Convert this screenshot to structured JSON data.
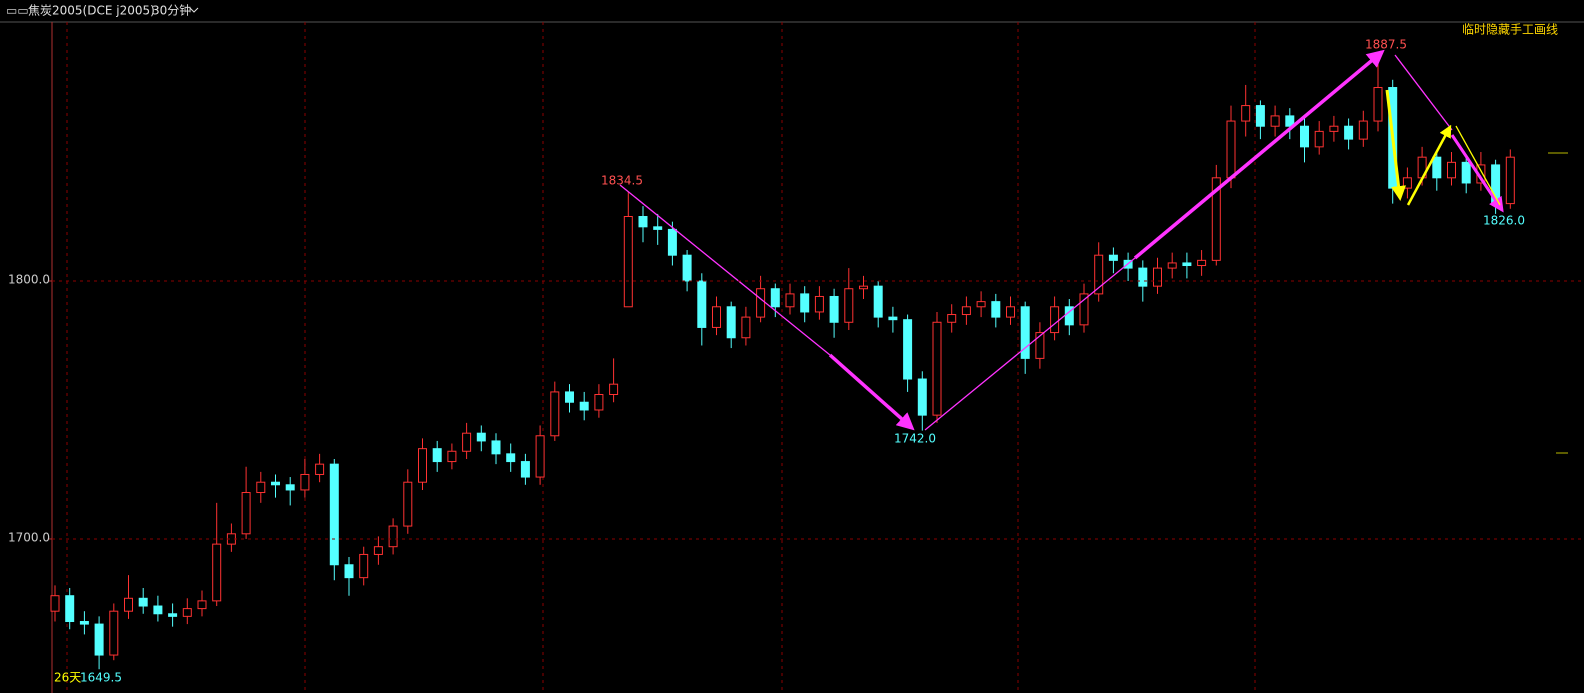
{
  "chart_data": {
    "type": "candlestick",
    "title": "焦炭2005(DCE j2005)",
    "period": "30分钟",
    "toolbar_action": "临时隐藏手工画线",
    "up_color": "#ff3232",
    "down_color": "#54ffff",
    "ylim": [
      1643,
      1900.4
    ],
    "yticks": [
      {
        "value": 1800,
        "label": "1800.0"
      },
      {
        "value": 1700,
        "label": "1700.0"
      }
    ],
    "annotations": [
      "1834.5",
      "1742.0",
      "1887.5",
      "1826.0"
    ],
    "days_label": "26天",
    "low_label": "1649.5",
    "open": [
      1672,
      1678,
      1668,
      1667,
      1655,
      1672,
      1677,
      1674,
      1671,
      1670,
      1673,
      1676,
      1698,
      1702,
      1718,
      1722,
      1721,
      1719,
      1725,
      1729,
      1690,
      1685,
      1694,
      1697,
      1705,
      1722,
      1735,
      1730,
      1734,
      1741,
      1738,
      1733,
      1730,
      1724,
      1740,
      1757,
      1753,
      1750,
      1756,
      1790,
      1825,
      1821,
      1820,
      1810,
      1800,
      1782,
      1790,
      1778,
      1786,
      1797,
      1790,
      1795,
      1788,
      1794,
      1784,
      1797,
      1798,
      1786,
      1785,
      1762,
      1748,
      1784,
      1787,
      1790,
      1792,
      1786,
      1790,
      1770,
      1780,
      1790,
      1783,
      1795,
      1810,
      1808,
      1805,
      1798,
      1805,
      1807,
      1806,
      1808,
      1840,
      1862,
      1868,
      1860,
      1864,
      1860,
      1852,
      1858,
      1860,
      1855,
      1862,
      1875,
      1836,
      1840,
      1848,
      1840,
      1846,
      1838,
      1845,
      1830
    ],
    "high": [
      1682,
      1681,
      1672,
      1670,
      1675,
      1686,
      1681,
      1678,
      1675,
      1677,
      1680,
      1714,
      1706,
      1728,
      1726,
      1725,
      1724,
      1731,
      1733,
      1731,
      1693,
      1697,
      1701,
      1708,
      1727,
      1739,
      1738,
      1737,
      1745,
      1744,
      1741,
      1737,
      1733,
      1744,
      1761,
      1760,
      1757,
      1760,
      1770,
      1834.5,
      1829,
      1826,
      1823,
      1812,
      1803,
      1794,
      1792,
      1790,
      1802,
      1799,
      1799,
      1798,
      1798,
      1797,
      1805,
      1802,
      1800,
      1790,
      1787,
      1765,
      1788,
      1791,
      1794,
      1796,
      1795,
      1794,
      1792,
      1784,
      1794,
      1793,
      1799,
      1815,
      1813,
      1811,
      1808,
      1809,
      1811,
      1811,
      1812,
      1845,
      1868,
      1876,
      1870,
      1868,
      1867,
      1863,
      1862,
      1864,
      1863,
      1866,
      1887.5,
      1878,
      1844,
      1852,
      1850,
      1850,
      1848,
      1850,
      1847,
      1851
    ],
    "low": [
      1668,
      1665,
      1663,
      1649.5,
      1653,
      1669,
      1671,
      1668,
      1666,
      1667,
      1670,
      1674,
      1695,
      1700,
      1714,
      1716,
      1713,
      1716,
      1722,
      1684,
      1678,
      1682,
      1690,
      1694,
      1702,
      1719,
      1726,
      1727,
      1731,
      1734,
      1729,
      1726,
      1721,
      1721,
      1738,
      1749,
      1746,
      1747,
      1753,
      1790,
      1815,
      1814,
      1806,
      1796,
      1775,
      1779,
      1774,
      1775,
      1784,
      1786,
      1787,
      1784,
      1785,
      1778,
      1781,
      1793,
      1782,
      1780,
      1757,
      1742,
      1745,
      1780,
      1783,
      1786,
      1782,
      1783,
      1764,
      1766,
      1777,
      1779,
      1780,
      1792,
      1803,
      1800,
      1792,
      1795,
      1801,
      1801,
      1802,
      1806,
      1836,
      1856,
      1855,
      1856,
      1855,
      1846,
      1849,
      1854,
      1851,
      1852,
      1858,
      1830,
      1832,
      1837,
      1835,
      1837,
      1834,
      1835,
      1826,
      1828
    ],
    "close": [
      1678,
      1668,
      1667,
      1655,
      1672,
      1677,
      1674,
      1671,
      1670,
      1673,
      1676,
      1698,
      1702,
      1718,
      1722,
      1721,
      1719,
      1725,
      1729,
      1690,
      1685,
      1694,
      1697,
      1705,
      1722,
      1735,
      1730,
      1734,
      1741,
      1738,
      1733,
      1730,
      1724,
      1740,
      1757,
      1753,
      1750,
      1756,
      1760,
      1825,
      1821,
      1820,
      1810,
      1800,
      1782,
      1790,
      1778,
      1786,
      1797,
      1790,
      1795,
      1788,
      1794,
      1784,
      1797,
      1798,
      1786,
      1785,
      1762,
      1748,
      1784,
      1787,
      1790,
      1792,
      1786,
      1790,
      1770,
      1780,
      1790,
      1783,
      1795,
      1810,
      1808,
      1805,
      1798,
      1805,
      1807,
      1806,
      1808,
      1840,
      1862,
      1868,
      1860,
      1864,
      1860,
      1852,
      1858,
      1860,
      1855,
      1862,
      1875,
      1836,
      1840,
      1848,
      1840,
      1846,
      1838,
      1845,
      1830,
      1848
    ]
  }
}
